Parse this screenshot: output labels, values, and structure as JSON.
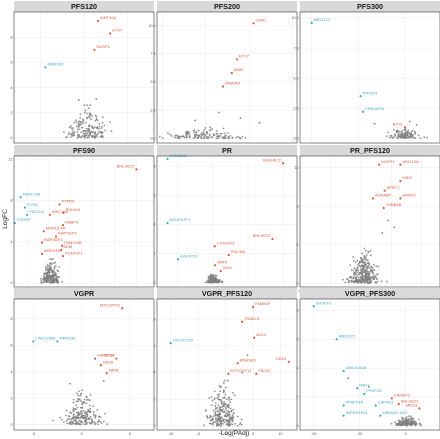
{
  "figure": {
    "xlabel": "-Log(PAdj)",
    "ylabel": "LogFC",
    "colors": {
      "up": "#d9583b",
      "down": "#3fa7c5",
      "ns": "#7f7f7f",
      "strip_bg": "#d9d9d9",
      "grid": "#ebebeb",
      "panel_border": "#333333"
    }
  },
  "chart_data": [
    {
      "type": "scatter",
      "title": "PFS120",
      "xlim": [
        -4,
        4
      ],
      "ylim": [
        -0.4,
        10
      ],
      "xticks": [
        -2.5,
        0,
        2.5
      ],
      "yticks": [
        0,
        2,
        4,
        6,
        8
      ],
      "cloud": {
        "center": 0.2,
        "spread": 1.3,
        "max_y": 2.6,
        "count": 170
      },
      "labels": [
        {
          "text": "WNT10A",
          "x": 0.8,
          "y": 9.3,
          "color": "up"
        },
        {
          "text": "ETV7",
          "x": 1.5,
          "y": 8.3,
          "color": "up"
        },
        {
          "text": "DUSP1",
          "x": 0.6,
          "y": 7.0,
          "color": "up"
        },
        {
          "text": "MRPS36",
          "x": -2.2,
          "y": 5.6,
          "color": "down"
        }
      ],
      "extra_points": [
        {
          "x": 0.7,
          "y": 3.1
        },
        {
          "x": -0.3,
          "y": 3.0
        }
      ]
    },
    {
      "type": "scatter",
      "title": "PFS200",
      "xlim": [
        -0.6,
        15.5
      ],
      "ylim": [
        -0.4,
        11.2
      ],
      "xticks": [
        0,
        5,
        10,
        15
      ],
      "yticks": [
        0.0,
        2.5,
        5.0,
        7.5,
        10.0
      ],
      "cloud": {
        "center": 5,
        "spread": 4.5,
        "max_y": 1.0,
        "count": 130
      },
      "labels": [
        {
          "text": "CNR1",
          "x": 10.5,
          "y": 10.2,
          "color": "up"
        },
        {
          "text": "ETV7",
          "x": 8.6,
          "y": 7.0,
          "color": "up"
        },
        {
          "text": "ADM",
          "x": 8.0,
          "y": 5.8,
          "color": "up"
        },
        {
          "text": "DNAJB1",
          "x": 7.0,
          "y": 4.6,
          "color": "up"
        }
      ],
      "extra_points": [
        {
          "x": 6.5,
          "y": 2.3
        },
        {
          "x": 9.0,
          "y": 1.8
        },
        {
          "x": 3.8,
          "y": 1.6
        },
        {
          "x": 11.2,
          "y": 1.4
        }
      ]
    },
    {
      "type": "scatter",
      "title": "PFS300",
      "xlim": [
        -45,
        15
      ],
      "ylim": [
        -0.4,
        10.5
      ],
      "xticks": [
        -40,
        -20,
        0
      ],
      "yticks": [
        0.0,
        2.5,
        5.0,
        7.5,
        10.0
      ],
      "cloud": {
        "center": 0,
        "spread": 7,
        "max_y": 0.9,
        "count": 110
      },
      "labels": [
        {
          "text": "MIR3122",
          "x": -40,
          "y": 9.6,
          "color": "down"
        },
        {
          "text": "PRODH",
          "x": -19,
          "y": 3.5,
          "color": "down"
        },
        {
          "text": "CRACR2A",
          "x": -18,
          "y": 2.2,
          "color": "down"
        },
        {
          "text": "BYSL",
          "x": 0,
          "y": 0.9,
          "color": "up"
        }
      ],
      "extra_points": [
        {
          "x": -13,
          "y": 1.2
        },
        {
          "x": 2,
          "y": 1.4
        },
        {
          "x": 5,
          "y": 1.1
        }
      ]
    },
    {
      "type": "scatter",
      "title": "PFS90",
      "xlim": [
        -8,
        24
      ],
      "ylim": [
        -0.4,
        12.3
      ],
      "xticks": [
        -5,
        0,
        5,
        10,
        15,
        20
      ],
      "yticks": [
        0,
        4,
        8,
        12
      ],
      "cloud": {
        "center": 0.4,
        "spread": 2,
        "max_y": 2.3,
        "count": 200
      },
      "labels": [
        {
          "text": "BHLHE22",
          "x": 20,
          "y": 11.0,
          "color": "up"
        },
        {
          "text": "PTPRK",
          "x": 2.4,
          "y": 7.6,
          "color": "up"
        },
        {
          "text": "PDLIM4",
          "x": 3.3,
          "y": 6.8,
          "color": "up"
        },
        {
          "text": "WNT10A",
          "x": 0.2,
          "y": 6.6,
          "color": "up"
        },
        {
          "text": "HABP4",
          "x": 3.2,
          "y": 5.6,
          "color": "up"
        },
        {
          "text": "EPB41L4A",
          "x": -1.2,
          "y": 5.0,
          "color": "up"
        },
        {
          "text": "RAPGEF5",
          "x": 1.6,
          "y": 4.5,
          "color": "up"
        },
        {
          "text": "RAPGEF1",
          "x": -1.6,
          "y": 3.9,
          "color": "up"
        },
        {
          "text": "FAM219B",
          "x": 3.0,
          "y": 3.6,
          "color": "up"
        },
        {
          "text": "ADM",
          "x": 2.8,
          "y": 3.2,
          "color": "up"
        },
        {
          "text": "MIR22HG",
          "x": -1.6,
          "y": 2.8,
          "color": "up"
        },
        {
          "text": "POLR1F1",
          "x": 3.2,
          "y": 2.6,
          "color": "up"
        },
        {
          "text": "FAM174B",
          "x": -6.5,
          "y": 8.3,
          "color": "down"
        },
        {
          "text": "FCRA",
          "x": -5.5,
          "y": 7.3,
          "color": "down"
        },
        {
          "text": "PDCD11",
          "x": -5.0,
          "y": 6.6,
          "color": "down"
        },
        {
          "text": "FSGRP",
          "x": -7.8,
          "y": 5.8,
          "color": "down"
        }
      ],
      "extra_points": []
    },
    {
      "type": "scatter",
      "title": "PR",
      "xlim": [
        -16,
        24
      ],
      "ylim": [
        -0.3,
        8.7
      ],
      "xticks": [
        -10,
        0,
        10,
        20
      ],
      "yticks": [
        0,
        2,
        4,
        6,
        8
      ],
      "cloud": {
        "center": 0,
        "spread": 2,
        "max_y": 0.6,
        "count": 140
      },
      "labels": [
        {
          "text": "BHLHE22",
          "x": 20,
          "y": 8.2,
          "color": "up"
        },
        {
          "text": "BHLHE22",
          "x": 17,
          "y": 3.0,
          "color": "up"
        },
        {
          "text": "COX20P1",
          "x": 0.5,
          "y": 2.5,
          "color": "up"
        },
        {
          "text": "PDLIM4",
          "x": 4.5,
          "y": 1.9,
          "color": "up"
        },
        {
          "text": "NAT5",
          "x": 0.6,
          "y": 1.2,
          "color": "up"
        },
        {
          "text": "ADM",
          "x": 2.2,
          "y": 0.8,
          "color": "up"
        },
        {
          "text": "VSIG8B2",
          "x": -13,
          "y": 8.5,
          "color": "down"
        },
        {
          "text": "NDUFA7P1",
          "x": -13,
          "y": 4.1,
          "color": "down"
        },
        {
          "text": "GALNT16",
          "x": -10,
          "y": 1.6,
          "color": "down"
        }
      ],
      "extra_points": []
    },
    {
      "type": "scatter",
      "title": "PR_PFS120",
      "xlim": [
        -20,
        26
      ],
      "ylim": [
        -0.4,
        13.2
      ],
      "xticks": [
        -20,
        -10,
        0,
        10,
        20
      ],
      "yticks": [
        0,
        4,
        8,
        12
      ],
      "cloud": {
        "center": 1,
        "spread": 5,
        "max_y": 3.6,
        "count": 300
      },
      "labels": [
        {
          "text": "DUSP1",
          "x": 6.0,
          "y": 12.3,
          "color": "up"
        },
        {
          "text": "WNT10A",
          "x": 13,
          "y": 12.3,
          "color": "up"
        },
        {
          "text": "MID2",
          "x": 13,
          "y": 10.6,
          "color": "up"
        },
        {
          "text": "SPRY7",
          "x": 7.8,
          "y": 9.6,
          "color": "up"
        },
        {
          "text": "AHDA5P",
          "x": 4.0,
          "y": 8.8,
          "color": "up"
        },
        {
          "text": "HRBP2",
          "x": 13,
          "y": 8.8,
          "color": "up"
        },
        {
          "text": "TUBB4B",
          "x": 7.5,
          "y": 7.8,
          "color": "up"
        }
      ],
      "extra_points": [
        {
          "x": 9,
          "y": 6.5
        },
        {
          "x": 11,
          "y": 5.8
        },
        {
          "x": 7,
          "y": 5.2
        }
      ]
    },
    {
      "type": "scatter",
      "title": "VGPR",
      "xlim": [
        -7,
        7.5
      ],
      "ylim": [
        -0.4,
        9.5
      ],
      "xticks": [
        -5,
        0,
        5
      ],
      "yticks": [
        0,
        2,
        4,
        6,
        8
      ],
      "cloud": {
        "center": 0,
        "spread": 2,
        "max_y": 2.7,
        "count": 200
      },
      "labels": [
        {
          "text": "MTC22P12",
          "x": 4.2,
          "y": 8.8,
          "color": "up"
        },
        {
          "text": "ALK8",
          "x": 3.6,
          "y": 5.0,
          "color": "up"
        },
        {
          "text": "FAM27E3",
          "x": 1.4,
          "y": 5.0,
          "color": "up"
        },
        {
          "text": "KB3A",
          "x": 2.0,
          "y": 4.5,
          "color": "up"
        },
        {
          "text": "VATB",
          "x": 2.6,
          "y": 3.9,
          "color": "up"
        },
        {
          "text": "LINC02566",
          "x": -5.0,
          "y": 6.3,
          "color": "down"
        },
        {
          "text": "MRPS36",
          "x": -2.5,
          "y": 6.3,
          "color": "down"
        }
      ],
      "extra_points": [
        {
          "x": 2.3,
          "y": 3.3
        },
        {
          "x": -1.2,
          "y": 3.1
        }
      ]
    },
    {
      "type": "scatter",
      "title": "VGPR_PFS120",
      "xlim": [
        -12.5,
        13
      ],
      "ylim": [
        -0.3,
        9.5
      ],
      "xticks": [
        -10,
        -5,
        0,
        5,
        10
      ],
      "yticks": [
        0,
        2,
        4,
        6,
        8
      ],
      "cloud": {
        "center": -0.5,
        "spread": 3,
        "max_y": 3.4,
        "count": 230
      },
      "labels": [
        {
          "text": "FAM83F",
          "x": 5.0,
          "y": 8.9,
          "color": "up"
        },
        {
          "text": "TRIB3-S",
          "x": 3.0,
          "y": 7.8,
          "color": "up"
        },
        {
          "text": "ALK4",
          "x": 5.2,
          "y": 6.6,
          "color": "up"
        },
        {
          "text": "GRD1",
          "x": 11.5,
          "y": 4.8,
          "color": "up"
        },
        {
          "text": "RNASE3",
          "x": 2.2,
          "y": 4.7,
          "color": "up"
        },
        {
          "text": "MTCO1P12",
          "x": 0.5,
          "y": 3.9,
          "color": "up"
        },
        {
          "text": "FBLN7",
          "x": 5.6,
          "y": 3.9,
          "color": "up"
        },
        {
          "text": "LINC01705",
          "x": -10,
          "y": 6.2,
          "color": "down"
        }
      ],
      "extra_points": [
        {
          "x": 4.0,
          "y": 5.3
        },
        {
          "x": 3.0,
          "y": 4.0
        }
      ]
    },
    {
      "type": "scatter",
      "title": "VGPR_PFS300",
      "xlim": [
        -46,
        15
      ],
      "ylim": [
        -0.3,
        8.8
      ],
      "xticks": [
        -40,
        -20,
        0
      ],
      "yticks": [
        0,
        2,
        4,
        6,
        8
      ],
      "cloud": {
        "center": 1,
        "spread": 6,
        "max_y": 0.7,
        "count": 140
      },
      "labels": [
        {
          "text": "EIF3KP1",
          "x": -40,
          "y": 8.3,
          "color": "down"
        },
        {
          "text": "MIR3122",
          "x": -30,
          "y": 6.0,
          "color": "down"
        },
        {
          "text": "LINC01438",
          "x": -27,
          "y": 3.8,
          "color": "down"
        },
        {
          "text": "NAV1",
          "x": -21,
          "y": 2.6,
          "color": "down"
        },
        {
          "text": "PPAP2A",
          "x": -18,
          "y": 2.2,
          "color": "down"
        },
        {
          "text": "PPAP2TA",
          "x": -27,
          "y": 1.4,
          "color": "down"
        },
        {
          "text": "CAPN13",
          "x": -13,
          "y": 1.4,
          "color": "down"
        },
        {
          "text": "IMPDH1P11",
          "x": -27,
          "y": 0.7,
          "color": "down"
        },
        {
          "text": "MIR3167-AS1",
          "x": -11,
          "y": 0.7,
          "color": "down"
        },
        {
          "text": "CAMKK2",
          "x": -6,
          "y": 1.9,
          "color": "up"
        },
        {
          "text": "BHLHE22",
          "x": -3,
          "y": 1.5,
          "color": "up"
        },
        {
          "text": "MEG3",
          "x": 6,
          "y": 1.2,
          "color": "up"
        }
      ],
      "extra_points": [
        {
          "x": -25,
          "y": 3.3
        },
        {
          "x": -16,
          "y": 2.7
        }
      ]
    }
  ]
}
